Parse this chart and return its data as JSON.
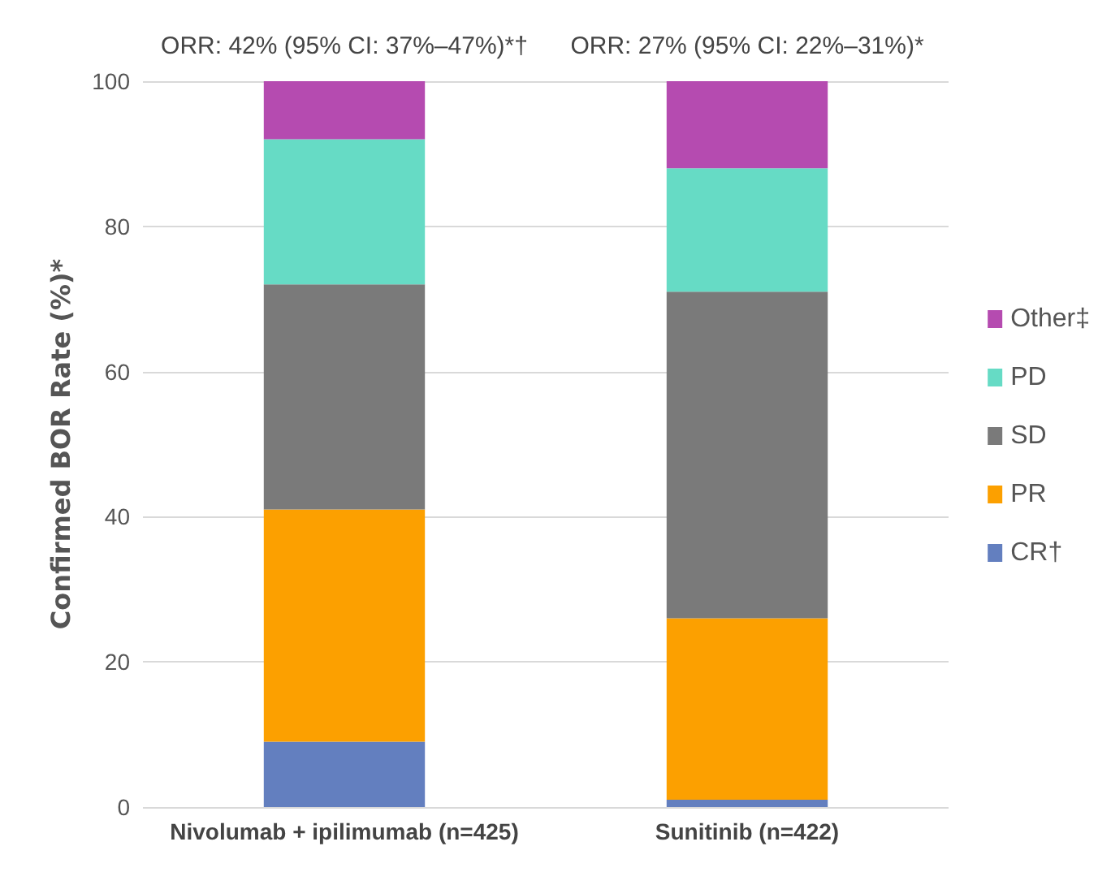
{
  "chart_data": {
    "type": "bar",
    "stacked": true,
    "categories": [
      "Nivolumab + ipilimumab (n=425)",
      "Sunitinib (n=422)"
    ],
    "ylabel": "Confirmed BOR Rate (%)*",
    "ylim": [
      0,
      100
    ],
    "yticks": [
      0,
      20,
      40,
      60,
      80,
      100
    ],
    "grid": "y",
    "legend": "right",
    "series": [
      {
        "name": "CR†",
        "color": "#637fbf",
        "values": [
          9,
          1
        ]
      },
      {
        "name": "PR",
        "color": "#fca000",
        "values": [
          32,
          25
        ]
      },
      {
        "name": "SD",
        "color": "#7a7a7a",
        "values": [
          31,
          45
        ]
      },
      {
        "name": "PD",
        "color": "#66dbc5",
        "values": [
          20,
          17
        ]
      },
      {
        "name": "Other‡",
        "color": "#b54bb0",
        "values": [
          8,
          12
        ]
      }
    ],
    "annotations": [
      {
        "text": "ORR: 42% (95% CI: 37%–47%)*†",
        "x": "Nivolumab + ipilimumab (n=425)",
        "y": 100
      },
      {
        "text": "ORR: 27% (95% CI: 22%–31%)*",
        "x": "Sunitinib (n=422)",
        "y": 100
      }
    ]
  }
}
